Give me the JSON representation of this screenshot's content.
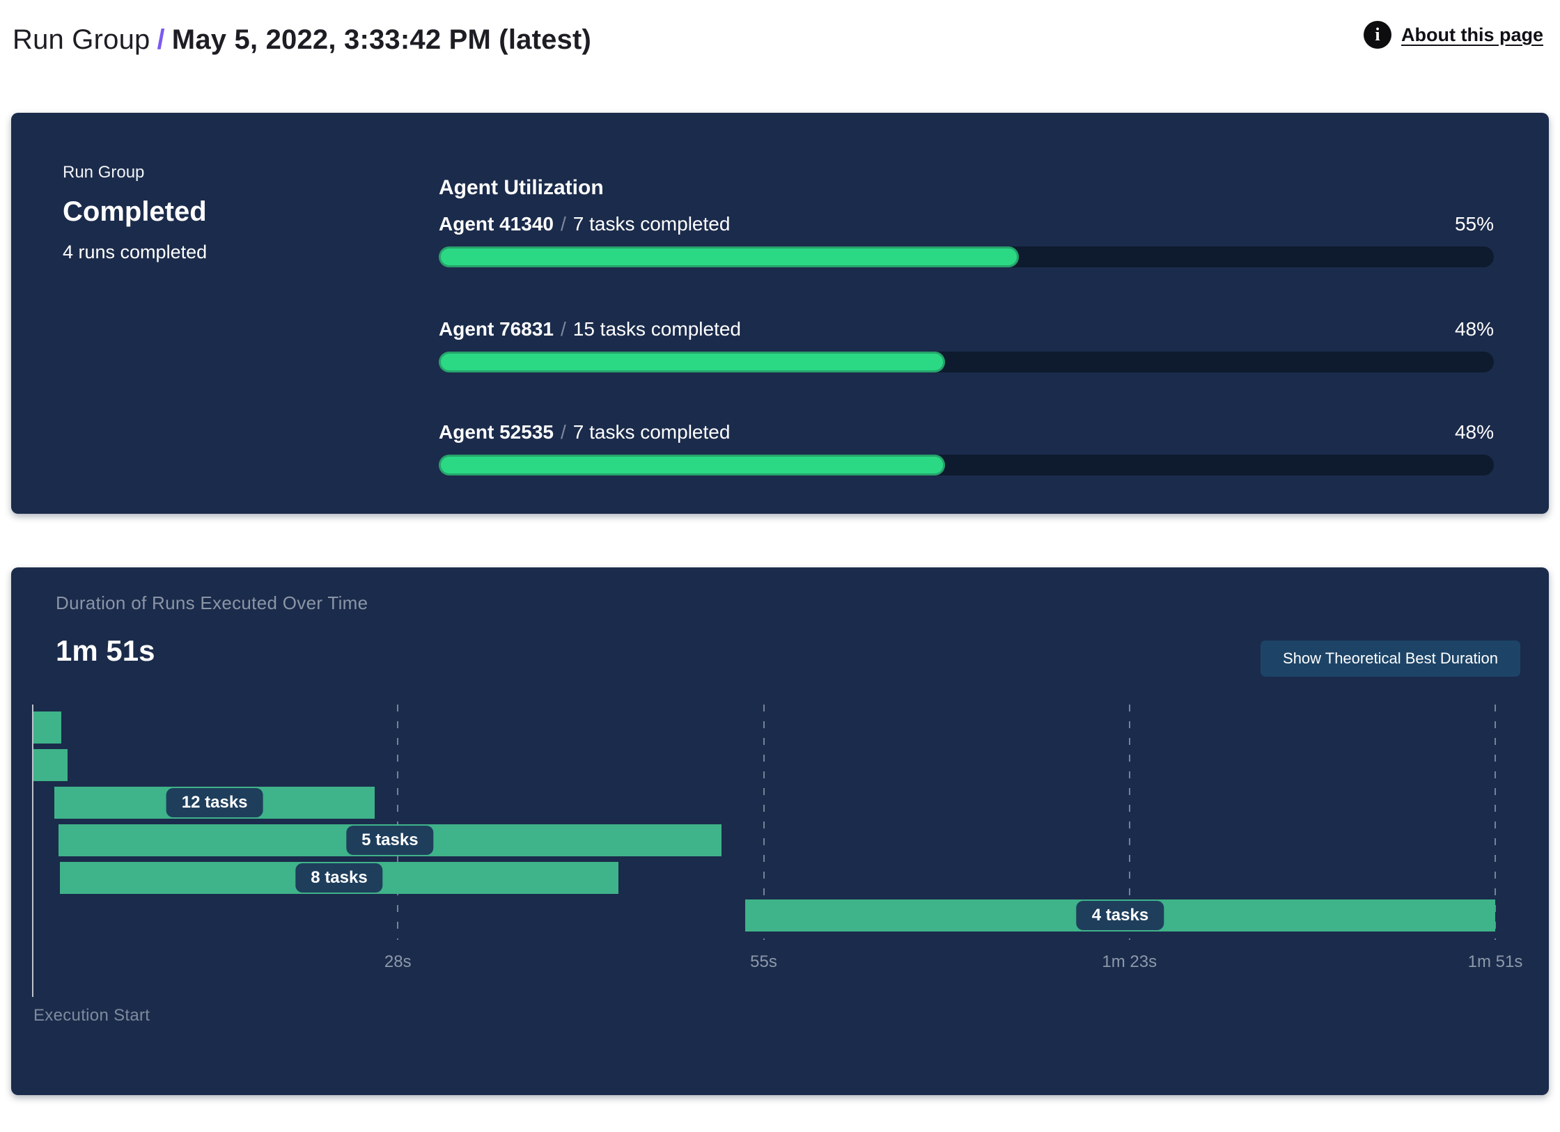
{
  "header": {
    "breadcrumb_root": "Run Group",
    "separator": "/",
    "title": "May 5, 2022, 3:33:42 PM (latest)",
    "info_icon_glyph": "i",
    "about_link": "About this page"
  },
  "status_panel": {
    "label": "Run Group",
    "status": "Completed",
    "runs_summary": "4 runs completed"
  },
  "agent_utilization": {
    "title": "Agent Utilization"
  },
  "duration_panel": {
    "subtitle": "Duration of Runs Executed Over Time",
    "total_duration": "1m 51s",
    "button_label": "Show Theoretical Best Duration",
    "origin_label": "Execution Start"
  },
  "chart_data": [
    {
      "id": "agent_utilization_bars",
      "type": "bar",
      "orientation": "horizontal",
      "title": "Agent Utilization",
      "categories": [
        "Agent 41340",
        "Agent 76831",
        "Agent 52535"
      ],
      "annotations": [
        "7 tasks completed",
        "15 tasks completed",
        "7 tasks completed"
      ],
      "values": [
        55,
        48,
        48
      ],
      "value_labels": [
        "55%",
        "48%",
        "48%"
      ],
      "unit": "%",
      "xlim": [
        0,
        100
      ]
    },
    {
      "id": "run_duration_timeline",
      "type": "bar",
      "subtype": "gantt-timeline",
      "title": "Duration of Runs Executed Over Time",
      "total_duration_label": "1m 51s",
      "time_axis": {
        "min_s": 0,
        "max_s": 111,
        "origin_label": "Execution Start",
        "ticks": [
          {
            "label": "28s",
            "at_s": 27.75
          },
          {
            "label": "55s",
            "at_s": 55.5
          },
          {
            "label": "1m 23s",
            "at_s": 83.25
          },
          {
            "label": "1m 51s",
            "at_s": 111
          }
        ]
      },
      "runs": [
        {
          "start_s": 0.1,
          "end_s": 2.2,
          "label": ""
        },
        {
          "start_s": 0.1,
          "end_s": 2.7,
          "label": ""
        },
        {
          "start_s": 1.7,
          "end_s": 26.0,
          "label": "12 tasks"
        },
        {
          "start_s": 2.0,
          "end_s": 52.3,
          "label": "5 tasks"
        },
        {
          "start_s": 2.1,
          "end_s": 44.5,
          "label": "8 tasks"
        },
        {
          "start_s": 54.1,
          "end_s": 111.0,
          "label": "4 tasks"
        }
      ]
    }
  ],
  "colors": {
    "panel_navy": "#1b2b4b",
    "track_navy": "#0e1b2e",
    "progress_green": "#2bd985",
    "progress_green_border": "#27a36b",
    "gantt_green": "#3fb389",
    "pill_navy": "#1e3e5c",
    "button_navy": "#1d4467",
    "slash_purple": "#7b5af0",
    "muted_text": "#8d98aa"
  }
}
